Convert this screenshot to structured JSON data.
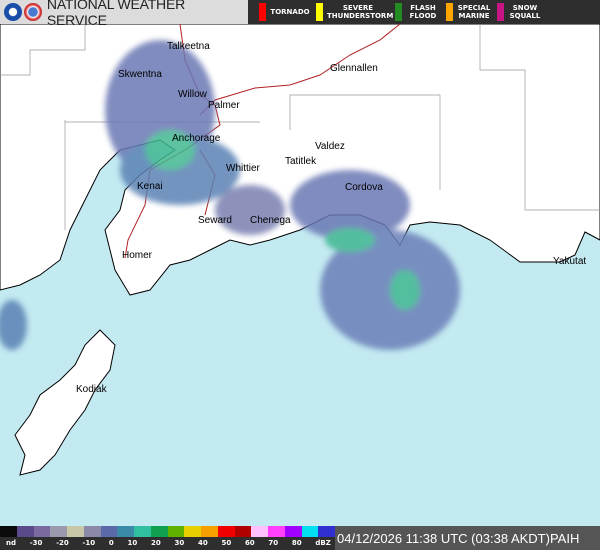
{
  "header": {
    "title": "NATIONAL WEATHER SERVICE",
    "warnings": [
      {
        "label": "TORNADO",
        "color": "#ff0000"
      },
      {
        "label": "SEVERE THUNDERSTORM",
        "color": "#ffff00"
      },
      {
        "label": "FLASH FLOOD",
        "color": "#228b22"
      },
      {
        "label": "SPECIAL MARINE",
        "color": "#ffa500"
      },
      {
        "label": "SNOW SQUALL",
        "color": "#c71585"
      }
    ]
  },
  "map": {
    "towns": [
      "Talkeetna",
      "Skwentna",
      "Willow",
      "Palmer",
      "Glennallen",
      "Anchorage",
      "Valdez",
      "Whittier",
      "Tatitlek",
      "Cordova",
      "Kenai",
      "Seward",
      "Chenega",
      "Homer",
      "Kodiak",
      "Yakutat"
    ],
    "colors": {
      "sea": "#c3e9f1",
      "land": "#ffffff",
      "roads": "#b22222"
    }
  },
  "legend": {
    "ticks": [
      "nd",
      "-30",
      "-20",
      "-10",
      "0",
      "10",
      "20",
      "30",
      "40",
      "50",
      "60",
      "70",
      "80",
      "dBZ"
    ],
    "colors": [
      "#0a0a0a",
      "#5a4a8c",
      "#7a6aa0",
      "#9a9aac",
      "#c8c8a8",
      "#8a8aa8",
      "#5a6aa8",
      "#3a8aa8",
      "#30c0a0",
      "#10a050",
      "#60b000",
      "#e8d000",
      "#f8a000",
      "#f00000",
      "#b00000",
      "#ffc0ff",
      "#ff40ff",
      "#a000ff",
      "#00e0f0",
      "#3030d0"
    ]
  },
  "footer": {
    "timestamp": "04/12/2026 11:38 UTC (03:38 AKDT)",
    "station": "PAIH"
  }
}
